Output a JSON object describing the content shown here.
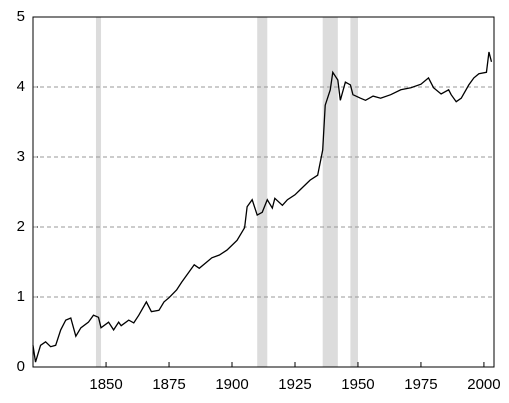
{
  "chart_data": {
    "type": "line",
    "x": [
      1821,
      1822,
      1824,
      1826,
      1828,
      1830,
      1832,
      1834,
      1836,
      1838,
      1840,
      1843,
      1845,
      1847,
      1848,
      1851,
      1853,
      1855,
      1856,
      1859,
      1861,
      1863,
      1866,
      1868,
      1871,
      1873,
      1875,
      1878,
      1880,
      1883,
      1885,
      1887,
      1890,
      1892,
      1895,
      1898,
      1902,
      1905,
      1906,
      1908,
      1910,
      1912,
      1914,
      1916,
      1917,
      1920,
      1922,
      1925,
      1927,
      1931,
      1934,
      1936,
      1937,
      1939,
      1940,
      1942,
      1943,
      1945,
      1947,
      1948,
      1951,
      1953,
      1956,
      1959,
      1963,
      1967,
      1971,
      1975,
      1978,
      1980,
      1983,
      1986,
      1987,
      1989,
      1991,
      1994,
      1996,
      1998,
      2001,
      2002,
      2003
    ],
    "series": [
      {
        "color": "#000000",
        "values": [
          0.31,
          0.07,
          0.31,
          0.36,
          0.29,
          0.31,
          0.53,
          0.67,
          0.7,
          0.44,
          0.56,
          0.64,
          0.74,
          0.71,
          0.56,
          0.64,
          0.53,
          0.64,
          0.59,
          0.67,
          0.63,
          0.74,
          0.93,
          0.79,
          0.81,
          0.93,
          0.99,
          1.1,
          1.21,
          1.36,
          1.46,
          1.41,
          1.5,
          1.56,
          1.6,
          1.67,
          1.81,
          1.99,
          2.29,
          2.39,
          2.17,
          2.21,
          2.39,
          2.27,
          2.41,
          2.31,
          2.39,
          2.46,
          2.53,
          2.67,
          2.74,
          3.1,
          3.74,
          3.96,
          4.21,
          4.1,
          3.81,
          4.07,
          4.03,
          3.89,
          3.84,
          3.81,
          3.87,
          3.84,
          3.89,
          3.96,
          3.99,
          4.04,
          4.13,
          3.99,
          3.9,
          3.96,
          3.89,
          3.79,
          3.84,
          4.03,
          4.13,
          4.19,
          4.21,
          4.5,
          4.36
        ]
      }
    ],
    "shaded_periods": [
      [
        1846,
        1848
      ],
      [
        1910,
        1914
      ],
      [
        1936,
        1942
      ],
      [
        1947,
        1950
      ]
    ],
    "shade_color": "#dcdcdc",
    "xlim": [
      1821,
      2004
    ],
    "xticks": [
      1850,
      1875,
      1900,
      1925,
      1950,
      1975,
      2000
    ],
    "ylim": [
      0,
      5
    ],
    "yticks": [
      0,
      1,
      2,
      3,
      4,
      5
    ],
    "grid": true
  }
}
